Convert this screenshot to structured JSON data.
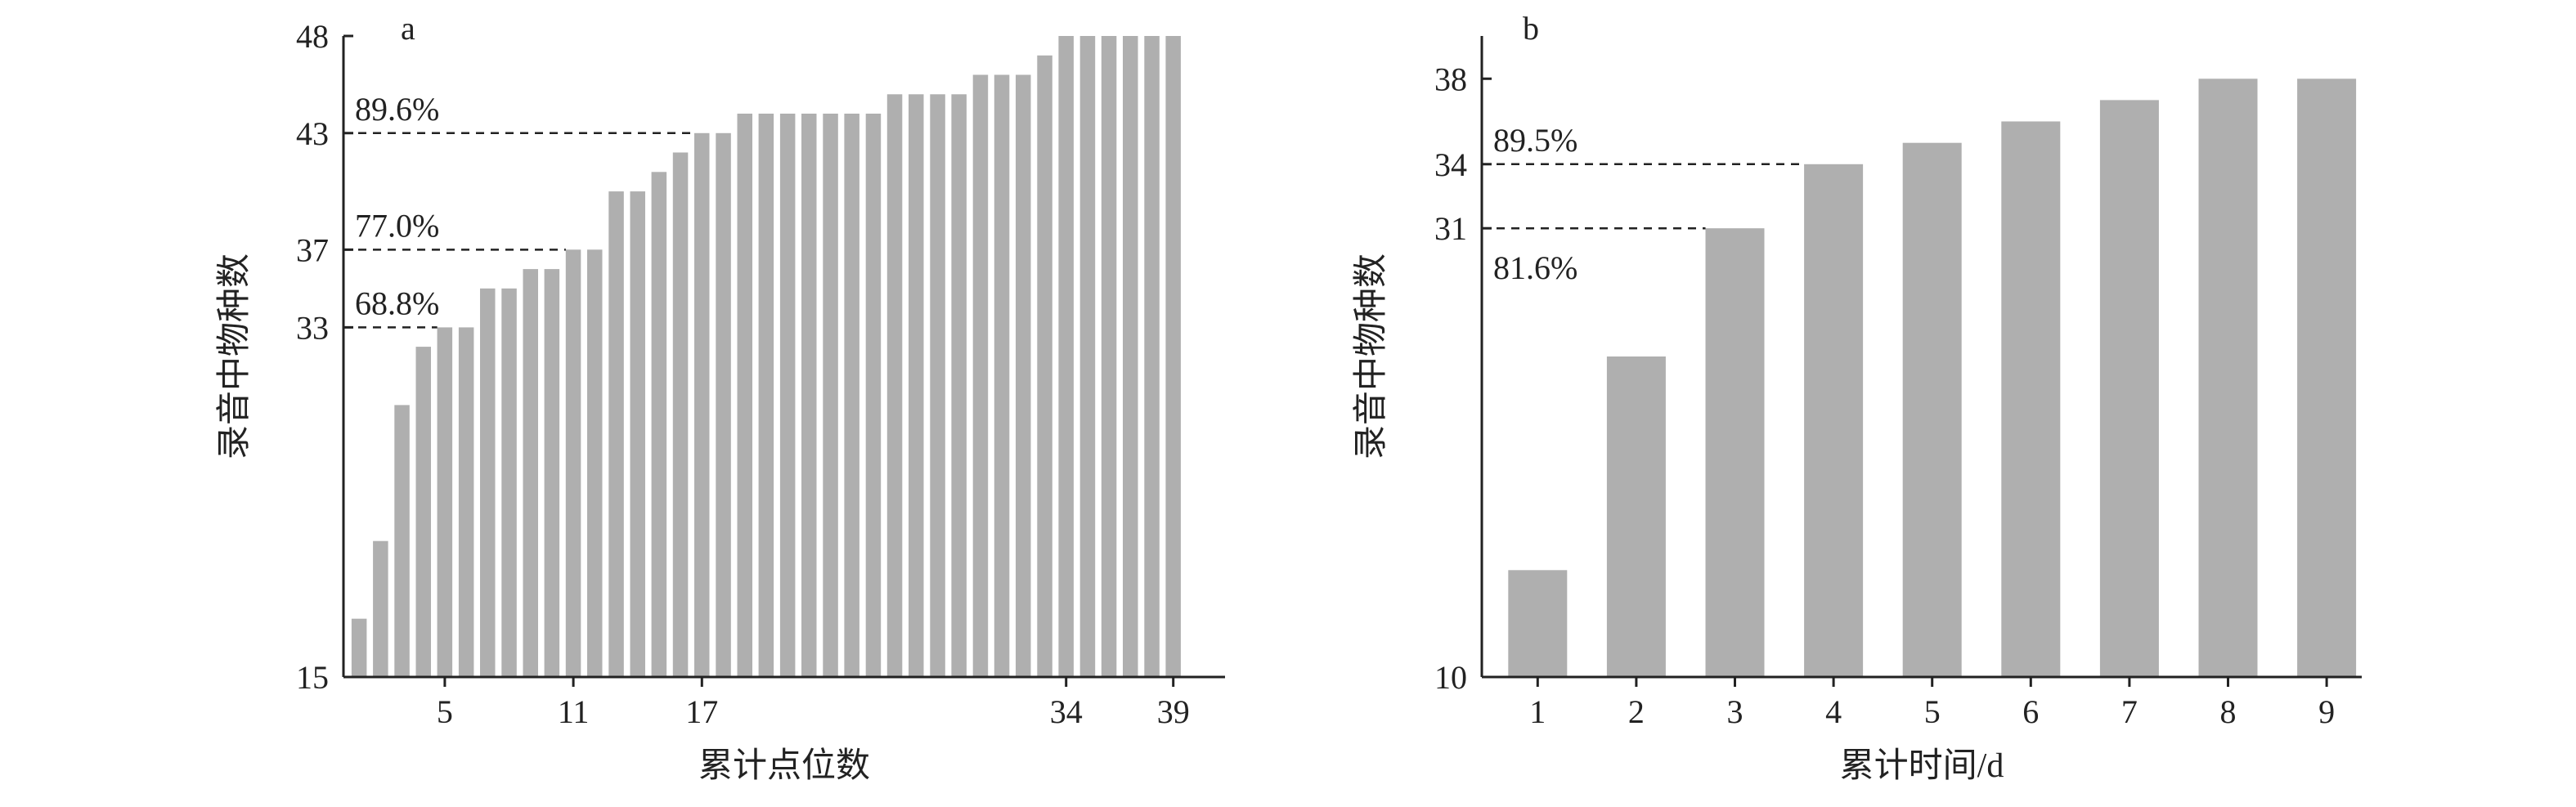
{
  "bar_color": "#afafaf",
  "axis_color": "#222222",
  "chart_data": [
    {
      "type": "bar",
      "panel_label": "a",
      "xlabel": "累计点位数",
      "ylabel": "录音中物种数",
      "ylim": [
        15,
        48
      ],
      "y_ticks": [
        15,
        33,
        37,
        43,
        48
      ],
      "x_ticks": [
        5,
        11,
        17,
        34,
        39
      ],
      "categories": [
        1,
        2,
        3,
        4,
        5,
        6,
        7,
        8,
        9,
        10,
        11,
        12,
        13,
        14,
        15,
        16,
        17,
        18,
        19,
        20,
        21,
        22,
        23,
        24,
        25,
        26,
        27,
        28,
        29,
        30,
        31,
        32,
        33,
        34,
        35,
        36,
        37,
        38,
        39
      ],
      "values": [
        18,
        22,
        29,
        32,
        33,
        33,
        35,
        35,
        36,
        36,
        37,
        37,
        40,
        40,
        41,
        42,
        43,
        43,
        44,
        44,
        44,
        44,
        44,
        44,
        44,
        45,
        45,
        45,
        45,
        46,
        46,
        46,
        47,
        48,
        48,
        48,
        48,
        48,
        48
      ],
      "annotations": [
        {
          "text": "68.8%",
          "y": 33,
          "x_end": 5
        },
        {
          "text": "77.0%",
          "y": 37,
          "x_end": 11
        },
        {
          "text": "89.6%",
          "y": 43,
          "x_end": 17
        }
      ]
    },
    {
      "type": "bar",
      "panel_label": "b",
      "xlabel": "累计时间/d",
      "ylabel": "录音中物种数",
      "ylim": [
        10,
        40
      ],
      "y_ticks": [
        10,
        31,
        34,
        38
      ],
      "x_ticks": [
        1,
        2,
        3,
        4,
        5,
        6,
        7,
        8,
        9
      ],
      "categories": [
        1,
        2,
        3,
        4,
        5,
        6,
        7,
        8,
        9
      ],
      "values": [
        15,
        25,
        31,
        34,
        35,
        36,
        37,
        38,
        38
      ],
      "annotations": [
        {
          "text": "81.6%",
          "y": 31,
          "x_end": 3
        },
        {
          "text": "89.5%",
          "y": 34,
          "x_end": 4
        }
      ]
    }
  ]
}
